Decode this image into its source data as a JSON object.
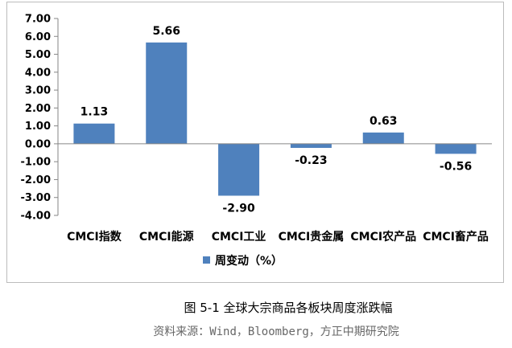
{
  "chart_data": {
    "type": "bar",
    "categories": [
      "CMCI指数",
      "CMCI能源",
      "CMCI工业",
      "CMCI贵金属",
      "CMCI农产品",
      "CMCI畜产品"
    ],
    "series": [
      {
        "name": "周变动（%）",
        "values": [
          1.13,
          5.66,
          -2.9,
          -0.23,
          0.63,
          -0.56
        ]
      }
    ],
    "data_labels": [
      "1.13",
      "5.66",
      "-2.90",
      "-0.23",
      "0.63",
      "-0.56"
    ],
    "y_ticks": [
      "7.00",
      "6.00",
      "5.00",
      "4.00",
      "3.00",
      "2.00",
      "1.00",
      "0.00",
      "-1.00",
      "-2.00",
      "-3.00",
      "-4.00"
    ],
    "ylim": [
      -4,
      7
    ],
    "grid": false,
    "legend_position": "bottom",
    "bar_color": "#4f81bd"
  },
  "caption": "图 5-1 全球大宗商品各板块周度涨跌幅",
  "source": "资料来源：Wind，Bloomberg，方正中期研究院"
}
